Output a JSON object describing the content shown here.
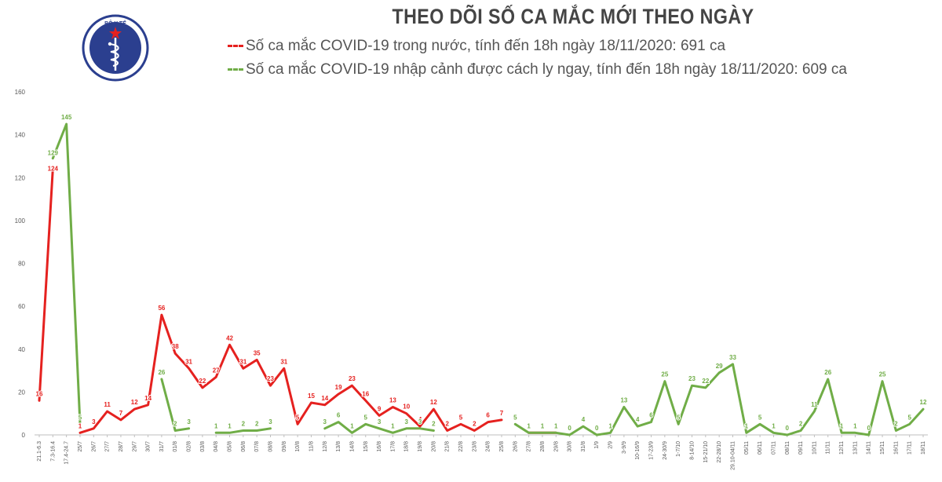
{
  "header": {
    "title": "THEO DÕI SỐ CA MẮC MỚI THEO NGÀY",
    "logo_text": "BỘ Y TẾ",
    "legend_red": "Số ca mắc COVID-19 trong nước, tính đến 18h ngày 18/11/2020: 691 ca",
    "legend_green": "Số ca mắc COVID-19 nhập cảnh được cách ly ngay, tính đến 18h ngày 18/11/2020: 609 ca"
  },
  "colors": {
    "red": "#e5211f",
    "green": "#70ad47",
    "axis": "#bfbfbf",
    "text": "#595959",
    "logo_blue": "#2b3f8f"
  },
  "chart_data": {
    "type": "line",
    "title": "THEO DÕI SỐ CA MẮC MỚI THEO NGÀY",
    "xlabel": "",
    "ylabel": "",
    "ylim": [
      0,
      160
    ],
    "yticks": [
      0,
      20,
      40,
      60,
      80,
      100,
      120,
      140,
      160
    ],
    "grid": false,
    "legend_position": "top",
    "categories": [
      "21.1-6.3",
      "7.3-16.4",
      "17.4-24.7",
      "25/7",
      "26/7",
      "27/7",
      "28/7",
      "29/7",
      "30/7",
      "31/7",
      "01/8",
      "02/8",
      "03/8",
      "04/8",
      "05/8",
      "06/8",
      "07/8",
      "08/8",
      "09/8",
      "10/8",
      "11/8",
      "12/8",
      "13/8",
      "14/8",
      "15/8",
      "16/8",
      "17/8",
      "18/8",
      "19/8",
      "20/8",
      "21/8",
      "22/8",
      "23/8",
      "24/8",
      "25/8",
      "26/8",
      "27/8",
      "28/8",
      "29/8",
      "30/8",
      "31/8",
      "1/9",
      "2/9",
      "3-9/9",
      "10-16/9",
      "17-23/9",
      "24-30/9",
      "1-7/10",
      "8-14/10",
      "15-21/10",
      "22-28/10",
      "29.10-04/11",
      "05/11",
      "06/11",
      "07/11",
      "08/11",
      "09/11",
      "10/11",
      "11/11",
      "12/11",
      "13/11",
      "14/11",
      "15/11",
      "16/11",
      "17/11",
      "18/11"
    ],
    "series": [
      {
        "name": "Số ca mắc COVID-19 trong nước",
        "color": "#e5211f",
        "values": [
          16,
          124,
          null,
          1,
          3,
          11,
          7,
          12,
          14,
          56,
          38,
          31,
          22,
          27,
          42,
          31,
          35,
          23,
          31,
          5,
          15,
          14,
          19,
          23,
          16,
          9,
          13,
          10,
          4,
          12,
          2,
          5,
          2,
          6,
          7,
          null,
          1,
          1,
          1,
          null,
          null,
          null,
          null,
          null,
          null,
          null,
          null,
          null,
          null,
          null,
          null,
          null,
          null,
          null,
          null,
          null,
          null,
          null,
          null,
          null,
          null,
          null,
          null,
          null,
          null,
          null
        ]
      },
      {
        "name": "Số ca mắc COVID-19 nhập cảnh được cách ly ngay",
        "color": "#70ad47",
        "values": [
          null,
          129,
          145,
          5,
          null,
          null,
          null,
          null,
          null,
          26,
          2,
          3,
          null,
          1,
          1,
          2,
          2,
          3,
          null,
          null,
          null,
          3,
          6,
          1,
          5,
          3,
          1,
          3,
          3,
          2,
          null,
          null,
          null,
          null,
          null,
          5,
          1,
          1,
          1,
          0,
          4,
          0,
          1,
          13,
          4,
          6,
          25,
          5,
          23,
          22,
          29,
          33,
          1,
          5,
          1,
          0,
          2,
          11,
          26,
          1,
          1,
          0,
          25,
          2,
          5,
          12
        ]
      }
    ]
  }
}
